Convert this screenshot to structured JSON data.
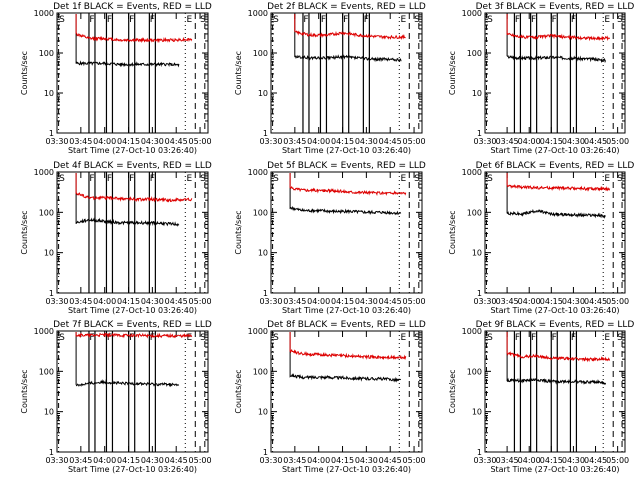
{
  "figure": {
    "start_time_label": "Start Time (27-Oct-10 03:26:40)",
    "ylabel": "Counts/sec",
    "x_tick_labels": [
      "03:30",
      "03:45",
      "04:00",
      "04:15",
      "04:30",
      "04:45",
      "05:00"
    ],
    "y_tick_labels": [
      "1",
      "10",
      "100",
      "1000"
    ],
    "colors": {
      "events": "#000000",
      "lld": "#dd0000"
    }
  },
  "chart_data": [
    {
      "type": "line",
      "title": "Det 1f BLACK = Events, RED = LLD",
      "xlabel": "Start Time (27-Oct-10 03:26:40)",
      "ylabel": "Counts/sec",
      "xlim": [
        "03:30",
        "05:05"
      ],
      "ylim": [
        1,
        1000
      ],
      "yscale": "log",
      "series": [
        {
          "name": "Events",
          "color": "#000000",
          "x": [
            "03:42",
            "03:50",
            "04:00",
            "04:10",
            "04:20",
            "04:30",
            "04:40",
            "04:47"
          ],
          "values": [
            55,
            55,
            55,
            52,
            52,
            52,
            52,
            50
          ]
        },
        {
          "name": "LLD",
          "color": "#dd0000",
          "x": [
            "03:42",
            "03:50",
            "04:00",
            "04:10",
            "04:20",
            "04:30",
            "04:40",
            "04:55"
          ],
          "values": [
            300,
            230,
            230,
            210,
            210,
            210,
            210,
            220
          ]
        }
      ],
      "markers": {
        "S": "03:31",
        "F1": "03:52",
        "F2": "04:03",
        "F3": "04:17",
        "F4": "04:30",
        "E": "04:57",
        "S2": "05:03"
      }
    },
    {
      "type": "line",
      "title": "Det 2f BLACK = Events, RED = LLD",
      "xlabel": "Start Time (27-Oct-10 03:26:40)",
      "ylabel": "Counts/sec",
      "xlim": [
        "03:30",
        "05:05"
      ],
      "ylim": [
        1,
        1000
      ],
      "yscale": "log",
      "series": [
        {
          "name": "Events",
          "color": "#000000",
          "x": [
            "03:45",
            "03:55",
            "04:05",
            "04:15",
            "04:25",
            "04:35",
            "04:45",
            "04:52"
          ],
          "values": [
            80,
            75,
            75,
            80,
            75,
            70,
            70,
            65
          ]
        },
        {
          "name": "LLD",
          "color": "#dd0000",
          "x": [
            "03:45",
            "03:55",
            "04:05",
            "04:15",
            "04:25",
            "04:35",
            "04:45",
            "04:55"
          ],
          "values": [
            330,
            280,
            280,
            320,
            280,
            260,
            250,
            250
          ]
        }
      ],
      "markers": {
        "S": "03:31",
        "F1": "03:52",
        "F2": "04:03",
        "F3": "04:17",
        "F4": "04:30",
        "E": "04:57",
        "S2": "05:03"
      }
    },
    {
      "type": "line",
      "title": "Det 3f BLACK = Events, RED = LLD",
      "xlabel": "Start Time (27-Oct-10 03:26:40)",
      "ylabel": "Counts/sec",
      "xlim": [
        "03:30",
        "05:05"
      ],
      "ylim": [
        1,
        1000
      ],
      "yscale": "log",
      "series": [
        {
          "name": "Events",
          "color": "#000000",
          "x": [
            "03:45",
            "03:55",
            "04:05",
            "04:15",
            "04:25",
            "04:35",
            "04:45",
            "04:52"
          ],
          "values": [
            80,
            75,
            75,
            78,
            75,
            72,
            70,
            65
          ]
        },
        {
          "name": "LLD",
          "color": "#dd0000",
          "x": [
            "03:45",
            "03:55",
            "04:05",
            "04:15",
            "04:25",
            "04:35",
            "04:45",
            "04:55"
          ],
          "values": [
            300,
            250,
            250,
            270,
            250,
            240,
            230,
            240
          ]
        }
      ],
      "markers": {
        "S": "03:31",
        "F1": "03:52",
        "F2": "04:03",
        "F3": "04:17",
        "F4": "04:30",
        "E": "04:57",
        "S2": "05:03"
      }
    },
    {
      "type": "line",
      "title": "Det 4f BLACK = Events, RED = LLD",
      "xlabel": "Start Time (27-Oct-10 03:26:40)",
      "ylabel": "Counts/sec",
      "xlim": [
        "03:30",
        "05:05"
      ],
      "ylim": [
        1,
        1000
      ],
      "yscale": "log",
      "series": [
        {
          "name": "Events",
          "color": "#000000",
          "x": [
            "03:42",
            "03:50",
            "04:00",
            "04:10",
            "04:20",
            "04:30",
            "04:40",
            "04:47"
          ],
          "values": [
            55,
            65,
            60,
            55,
            55,
            55,
            52,
            50
          ]
        },
        {
          "name": "LLD",
          "color": "#dd0000",
          "x": [
            "03:42",
            "03:50",
            "04:00",
            "04:10",
            "04:20",
            "04:30",
            "04:40",
            "04:55"
          ],
          "values": [
            300,
            230,
            230,
            220,
            210,
            210,
            200,
            210
          ]
        }
      ],
      "markers": {
        "S": "03:31",
        "F1": "03:52",
        "F2": "04:03",
        "F3": "04:17",
        "F4": "04:30",
        "E": "04:57",
        "S2": "05:03"
      }
    },
    {
      "type": "line",
      "title": "Det 5f BLACK = Events, RED = LLD",
      "xlabel": "Start Time (27-Oct-10 03:26:40)",
      "ylabel": "Counts/sec",
      "xlim": [
        "03:30",
        "05:05"
      ],
      "ylim": [
        1,
        1000
      ],
      "yscale": "log",
      "series": [
        {
          "name": "Events",
          "color": "#000000",
          "x": [
            "03:42",
            "03:50",
            "04:00",
            "04:10",
            "04:20",
            "04:30",
            "04:40",
            "04:52"
          ],
          "values": [
            130,
            110,
            110,
            105,
            105,
            100,
            100,
            95
          ]
        },
        {
          "name": "LLD",
          "color": "#dd0000",
          "x": [
            "03:42",
            "03:50",
            "04:00",
            "04:10",
            "04:20",
            "04:30",
            "04:40",
            "04:55"
          ],
          "values": [
            400,
            360,
            350,
            340,
            320,
            310,
            300,
            300
          ]
        }
      ],
      "markers": {
        "S": "03:31",
        "E": "04:57",
        "S2": "05:03"
      }
    },
    {
      "type": "line",
      "title": "Det 6f BLACK = Events, RED = LLD",
      "xlabel": "Start Time (27-Oct-10 03:26:40)",
      "ylabel": "Counts/sec",
      "xlim": [
        "03:30",
        "05:05"
      ],
      "ylim": [
        1,
        1000
      ],
      "yscale": "log",
      "series": [
        {
          "name": "Events",
          "color": "#000000",
          "x": [
            "03:45",
            "03:55",
            "04:05",
            "04:15",
            "04:25",
            "04:35",
            "04:45",
            "04:52"
          ],
          "values": [
            95,
            90,
            110,
            90,
            88,
            85,
            85,
            80
          ]
        },
        {
          "name": "LLD",
          "color": "#dd0000",
          "x": [
            "03:45",
            "03:55",
            "04:05",
            "04:15",
            "04:25",
            "04:35",
            "04:45",
            "04:55"
          ],
          "values": [
            450,
            420,
            410,
            400,
            400,
            390,
            380,
            370
          ]
        }
      ],
      "markers": {
        "S": "03:31",
        "E": "04:57",
        "S2": "05:03"
      }
    },
    {
      "type": "line",
      "title": "Det 7f BLACK = Events, RED = LLD",
      "xlabel": "Start Time (27-Oct-10 03:26:40)",
      "ylabel": "Counts/sec",
      "xlim": [
        "03:30",
        "05:05"
      ],
      "ylim": [
        1,
        1000
      ],
      "yscale": "log",
      "series": [
        {
          "name": "Events",
          "color": "#000000",
          "x": [
            "03:42",
            "03:50",
            "04:00",
            "04:10",
            "04:20",
            "04:30",
            "04:40",
            "04:47"
          ],
          "values": [
            45,
            50,
            55,
            50,
            50,
            48,
            48,
            45
          ]
        },
        {
          "name": "LLD",
          "color": "#dd0000",
          "x": [
            "03:42",
            "03:50",
            "04:00",
            "04:10",
            "04:20",
            "04:30",
            "04:40",
            "04:55"
          ],
          "values": [
            800,
            780,
            800,
            780,
            780,
            760,
            760,
            760
          ]
        }
      ],
      "markers": {
        "S": "03:31",
        "F1": "03:52",
        "F2": "04:03",
        "F3": "04:17",
        "F4": "04:30",
        "E": "04:57",
        "S2": "05:03"
      }
    },
    {
      "type": "line",
      "title": "Det 8f BLACK = Events, RED = LLD",
      "xlabel": "Start Time (27-Oct-10 03:26:40)",
      "ylabel": "Counts/sec",
      "xlim": [
        "03:30",
        "05:05"
      ],
      "ylim": [
        1,
        1000
      ],
      "yscale": "log",
      "series": [
        {
          "name": "Events",
          "color": "#000000",
          "x": [
            "03:42",
            "03:50",
            "04:00",
            "04:10",
            "04:20",
            "04:30",
            "04:40",
            "04:52"
          ],
          "values": [
            80,
            70,
            72,
            70,
            68,
            66,
            65,
            60
          ]
        },
        {
          "name": "LLD",
          "color": "#dd0000",
          "x": [
            "03:42",
            "03:50",
            "04:00",
            "04:10",
            "04:20",
            "04:30",
            "04:40",
            "04:55"
          ],
          "values": [
            320,
            270,
            260,
            250,
            240,
            230,
            220,
            220
          ]
        }
      ],
      "markers": {
        "S": "03:31",
        "E": "04:57",
        "S2": "05:03"
      }
    },
    {
      "type": "line",
      "title": "Det 9f BLACK = Events, RED = LLD",
      "xlabel": "Start Time (27-Oct-10 03:26:40)",
      "ylabel": "Counts/sec",
      "xlim": [
        "03:30",
        "05:05"
      ],
      "ylim": [
        1,
        1000
      ],
      "yscale": "log",
      "series": [
        {
          "name": "Events",
          "color": "#000000",
          "x": [
            "03:45",
            "03:55",
            "04:05",
            "04:15",
            "04:25",
            "04:35",
            "04:45",
            "04:52"
          ],
          "values": [
            60,
            58,
            62,
            56,
            56,
            55,
            54,
            52
          ]
        },
        {
          "name": "LLD",
          "color": "#dd0000",
          "x": [
            "03:45",
            "03:55",
            "04:05",
            "04:15",
            "04:25",
            "04:35",
            "04:45",
            "04:55"
          ],
          "values": [
            280,
            230,
            240,
            210,
            210,
            200,
            200,
            200
          ]
        }
      ],
      "markers": {
        "S": "03:31",
        "F1": "03:52",
        "F2": "04:03",
        "F3": "04:17",
        "F4": "04:30",
        "E": "04:57",
        "S2": "05:03"
      }
    }
  ]
}
